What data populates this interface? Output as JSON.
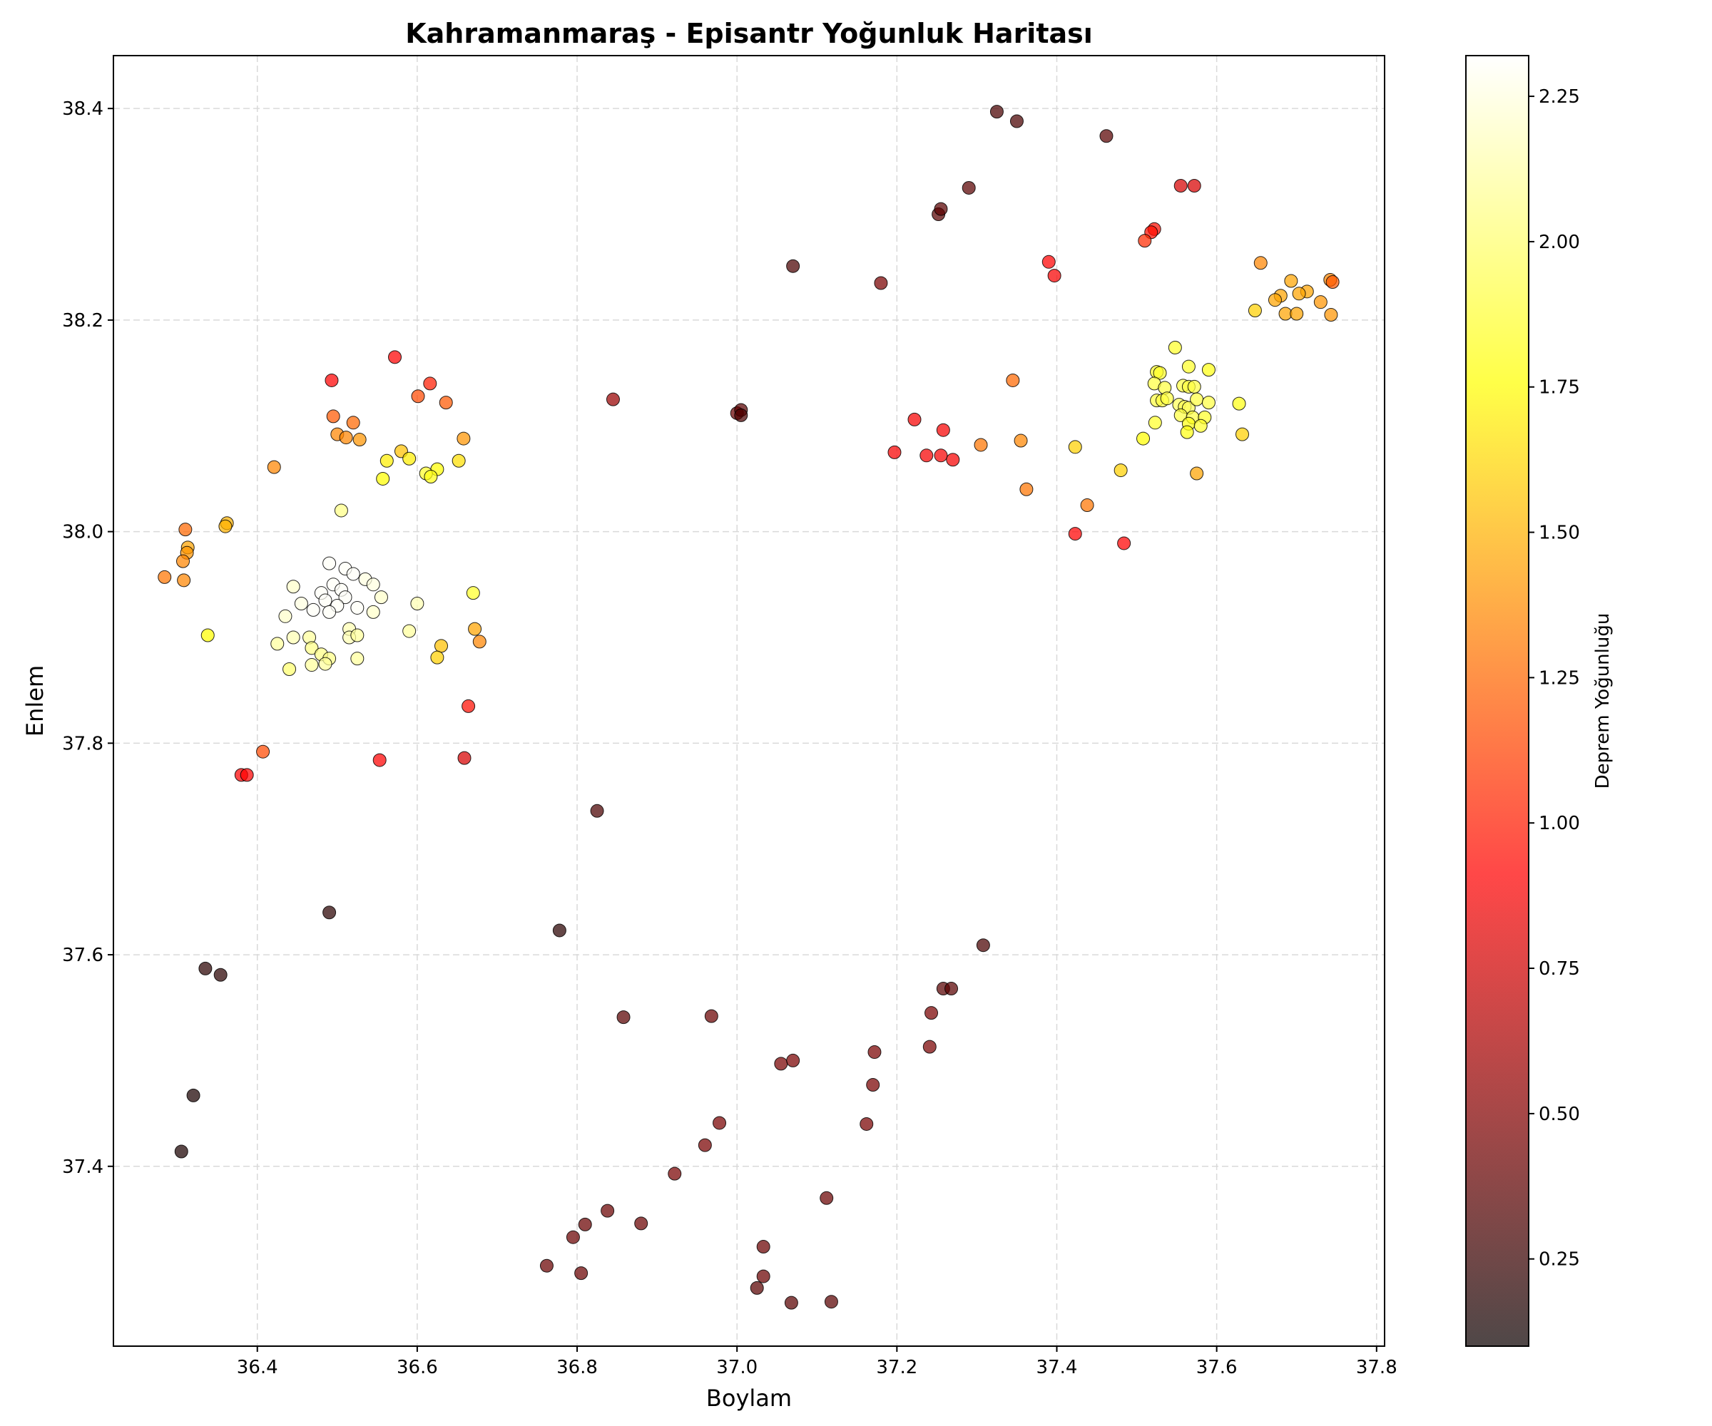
{
  "chart_data": {
    "type": "scatter",
    "title": "Kahramanmaraş - Episantr Yoğunluk Haritası",
    "xlabel": "Boylam",
    "ylabel": "Enlem",
    "xlim": [
      36.22,
      37.81
    ],
    "ylim": [
      37.23,
      38.45
    ],
    "xticks": [
      36.4,
      36.6,
      36.8,
      37.0,
      37.2,
      37.4,
      37.6,
      37.8
    ],
    "yticks": [
      37.4,
      37.6,
      37.8,
      38.0,
      38.2,
      38.4
    ],
    "x_tick_labels": [
      "36.4",
      "36.6",
      "36.8",
      "37.0",
      "37.2",
      "37.4",
      "37.6",
      "37.8"
    ],
    "y_tick_labels": [
      "37.4",
      "37.6",
      "37.8",
      "38.0",
      "38.2",
      "38.4"
    ],
    "grid": true,
    "colorbar": {
      "label": "Deprem Yoğunluğu",
      "range": [
        0.1,
        2.32
      ],
      "ticks": [
        0.25,
        0.5,
        0.75,
        1.0,
        1.25,
        1.5,
        1.75,
        2.0,
        2.25
      ],
      "tick_labels": [
        "0.25",
        "0.50",
        "0.75",
        "1.00",
        "1.25",
        "1.50",
        "1.75",
        "2.00",
        "2.25"
      ],
      "colormap": "hot"
    },
    "points": [
      [
        36.49,
        37.97,
        2.3
      ],
      [
        36.51,
        37.965,
        2.3
      ],
      [
        36.52,
        37.96,
        2.3
      ],
      [
        36.535,
        37.955,
        2.25
      ],
      [
        36.545,
        37.95,
        2.25
      ],
      [
        36.495,
        37.95,
        2.3
      ],
      [
        36.505,
        37.945,
        2.3
      ],
      [
        36.445,
        37.948,
        2.2
      ],
      [
        36.48,
        37.942,
        2.3
      ],
      [
        36.485,
        37.935,
        2.3
      ],
      [
        36.51,
        37.938,
        2.3
      ],
      [
        36.555,
        37.938,
        2.2
      ],
      [
        36.455,
        37.932,
        2.25
      ],
      [
        36.5,
        37.93,
        2.3
      ],
      [
        36.525,
        37.928,
        2.3
      ],
      [
        36.47,
        37.926,
        2.3
      ],
      [
        36.49,
        37.924,
        2.3
      ],
      [
        36.545,
        37.924,
        2.2
      ],
      [
        36.435,
        37.92,
        2.2
      ],
      [
        36.6,
        37.932,
        2.15
      ],
      [
        36.515,
        37.908,
        2.15
      ],
      [
        36.445,
        37.9,
        2.15
      ],
      [
        36.465,
        37.9,
        2.1
      ],
      [
        36.515,
        37.9,
        2.15
      ],
      [
        36.525,
        37.902,
        2.1
      ],
      [
        36.59,
        37.906,
        2.1
      ],
      [
        36.425,
        37.894,
        2.1
      ],
      [
        36.468,
        37.89,
        2.05
      ],
      [
        36.48,
        37.884,
        2.05
      ],
      [
        36.49,
        37.88,
        2.05
      ],
      [
        36.525,
        37.88,
        2.1
      ],
      [
        36.468,
        37.874,
        2.1
      ],
      [
        36.485,
        37.875,
        2.1
      ],
      [
        36.44,
        37.87,
        2.0
      ],
      [
        36.505,
        38.02,
        2.05
      ],
      [
        36.67,
        37.942,
        1.85
      ],
      [
        36.338,
        37.902,
        1.75
      ],
      [
        36.672,
        37.908,
        1.45
      ],
      [
        36.678,
        37.896,
        1.35
      ],
      [
        36.63,
        37.892,
        1.55
      ],
      [
        36.625,
        37.881,
        1.6
      ],
      [
        36.572,
        38.165,
        0.9
      ],
      [
        36.493,
        38.143,
        0.9
      ],
      [
        36.616,
        38.14,
        1.0
      ],
      [
        36.601,
        38.128,
        1.15
      ],
      [
        36.636,
        38.122,
        1.2
      ],
      [
        36.495,
        38.109,
        1.2
      ],
      [
        36.52,
        38.103,
        1.25
      ],
      [
        36.5,
        38.092,
        1.35
      ],
      [
        36.511,
        38.089,
        1.35
      ],
      [
        36.528,
        38.087,
        1.4
      ],
      [
        36.658,
        38.088,
        1.4
      ],
      [
        36.58,
        38.076,
        1.55
      ],
      [
        36.562,
        38.067,
        1.7
      ],
      [
        36.59,
        38.069,
        1.7
      ],
      [
        36.652,
        38.067,
        1.65
      ],
      [
        36.625,
        38.059,
        1.75
      ],
      [
        36.611,
        38.055,
        1.85
      ],
      [
        36.617,
        38.052,
        1.8
      ],
      [
        36.557,
        38.05,
        1.75
      ],
      [
        36.421,
        38.061,
        1.35
      ],
      [
        36.31,
        38.002,
        1.25
      ],
      [
        36.362,
        38.008,
        1.5
      ],
      [
        36.36,
        38.005,
        1.5
      ],
      [
        36.313,
        37.985,
        1.45
      ],
      [
        36.312,
        37.98,
        1.4
      ],
      [
        36.307,
        37.972,
        1.35
      ],
      [
        36.284,
        37.957,
        1.3
      ],
      [
        36.308,
        37.954,
        1.35
      ],
      [
        36.664,
        37.835,
        0.95
      ],
      [
        36.407,
        37.792,
        1.15
      ],
      [
        36.38,
        37.77,
        0.9
      ],
      [
        36.387,
        37.77,
        0.9
      ],
      [
        36.553,
        37.784,
        0.9
      ],
      [
        36.659,
        37.786,
        0.75
      ],
      [
        36.825,
        37.736,
        0.3
      ],
      [
        36.49,
        37.64,
        0.2
      ],
      [
        36.335,
        37.587,
        0.2
      ],
      [
        36.354,
        37.581,
        0.2
      ],
      [
        36.778,
        37.623,
        0.2
      ],
      [
        36.32,
        37.467,
        0.15
      ],
      [
        36.305,
        37.414,
        0.15
      ],
      [
        36.845,
        38.125,
        0.55
      ],
      [
        37.0,
        38.112,
        0.4
      ],
      [
        37.005,
        38.115,
        0.35
      ],
      [
        37.005,
        38.11,
        0.3
      ],
      [
        37.07,
        38.251,
        0.3
      ],
      [
        37.18,
        38.235,
        0.45
      ],
      [
        37.252,
        38.3,
        0.35
      ],
      [
        37.255,
        38.305,
        0.35
      ],
      [
        37.29,
        38.325,
        0.35
      ],
      [
        37.325,
        38.397,
        0.3
      ],
      [
        37.35,
        38.388,
        0.3
      ],
      [
        37.462,
        38.374,
        0.35
      ],
      [
        37.308,
        37.609,
        0.3
      ],
      [
        37.258,
        37.568,
        0.35
      ],
      [
        37.268,
        37.568,
        0.35
      ],
      [
        37.243,
        37.545,
        0.45
      ],
      [
        37.241,
        37.513,
        0.45
      ],
      [
        37.172,
        37.508,
        0.45
      ],
      [
        37.17,
        37.477,
        0.45
      ],
      [
        37.162,
        37.44,
        0.45
      ],
      [
        37.055,
        37.497,
        0.45
      ],
      [
        37.07,
        37.5,
        0.45
      ],
      [
        36.968,
        37.542,
        0.4
      ],
      [
        36.858,
        37.541,
        0.35
      ],
      [
        36.978,
        37.441,
        0.45
      ],
      [
        36.96,
        37.42,
        0.45
      ],
      [
        36.922,
        37.393,
        0.45
      ],
      [
        37.112,
        37.37,
        0.4
      ],
      [
        36.838,
        37.358,
        0.4
      ],
      [
        36.81,
        37.345,
        0.4
      ],
      [
        36.88,
        37.346,
        0.4
      ],
      [
        36.795,
        37.333,
        0.4
      ],
      [
        37.033,
        37.324,
        0.4
      ],
      [
        36.762,
        37.306,
        0.4
      ],
      [
        36.805,
        37.299,
        0.4
      ],
      [
        37.033,
        37.296,
        0.4
      ],
      [
        37.025,
        37.285,
        0.35
      ],
      [
        37.068,
        37.271,
        0.35
      ],
      [
        37.118,
        37.272,
        0.35
      ],
      [
        37.555,
        38.327,
        0.75
      ],
      [
        37.572,
        38.327,
        0.75
      ],
      [
        37.522,
        38.286,
        0.95
      ],
      [
        37.518,
        38.283,
        0.95
      ],
      [
        37.51,
        38.275,
        1.05
      ],
      [
        37.39,
        38.255,
        0.9
      ],
      [
        37.397,
        38.242,
        0.85
      ],
      [
        37.222,
        38.106,
        0.85
      ],
      [
        37.258,
        38.096,
        0.85
      ],
      [
        37.197,
        38.075,
        0.85
      ],
      [
        37.237,
        38.072,
        0.85
      ],
      [
        37.255,
        38.072,
        0.85
      ],
      [
        37.27,
        38.068,
        0.85
      ],
      [
        37.423,
        37.998,
        0.9
      ],
      [
        37.484,
        37.989,
        0.9
      ],
      [
        37.345,
        38.143,
        1.25
      ],
      [
        37.305,
        38.082,
        1.3
      ],
      [
        37.355,
        38.086,
        1.35
      ],
      [
        37.362,
        38.04,
        1.3
      ],
      [
        37.438,
        38.025,
        1.3
      ],
      [
        37.423,
        38.08,
        1.6
      ],
      [
        37.48,
        38.058,
        1.6
      ],
      [
        37.548,
        38.174,
        1.85
      ],
      [
        37.565,
        38.156,
        1.85
      ],
      [
        37.525,
        38.151,
        1.85
      ],
      [
        37.529,
        38.15,
        1.85
      ],
      [
        37.59,
        38.153,
        1.8
      ],
      [
        37.522,
        38.14,
        1.9
      ],
      [
        37.535,
        38.136,
        1.9
      ],
      [
        37.558,
        38.138,
        1.9
      ],
      [
        37.565,
        38.137,
        1.9
      ],
      [
        37.572,
        38.137,
        1.9
      ],
      [
        37.553,
        38.12,
        1.95
      ],
      [
        37.525,
        38.124,
        1.9
      ],
      [
        37.532,
        38.124,
        1.9
      ],
      [
        37.538,
        38.126,
        1.9
      ],
      [
        37.56,
        38.118,
        1.95
      ],
      [
        37.565,
        38.117,
        1.95
      ],
      [
        37.575,
        38.125,
        1.9
      ],
      [
        37.59,
        38.122,
        1.9
      ],
      [
        37.555,
        38.11,
        1.9
      ],
      [
        37.57,
        38.108,
        1.9
      ],
      [
        37.585,
        38.108,
        1.85
      ],
      [
        37.628,
        38.121,
        1.8
      ],
      [
        37.523,
        38.103,
        1.85
      ],
      [
        37.565,
        38.102,
        1.8
      ],
      [
        37.58,
        38.1,
        1.85
      ],
      [
        37.563,
        38.094,
        1.8
      ],
      [
        37.508,
        38.088,
        1.75
      ],
      [
        37.632,
        38.092,
        1.6
      ],
      [
        37.575,
        38.055,
        1.45
      ],
      [
        37.655,
        38.254,
        1.35
      ],
      [
        37.693,
        38.237,
        1.45
      ],
      [
        37.742,
        38.238,
        1.35
      ],
      [
        37.745,
        38.236,
        1.2
      ],
      [
        37.713,
        38.227,
        1.45
      ],
      [
        37.703,
        38.225,
        1.45
      ],
      [
        37.68,
        38.223,
        1.45
      ],
      [
        37.673,
        38.219,
        1.45
      ],
      [
        37.73,
        38.217,
        1.4
      ],
      [
        37.648,
        38.209,
        1.6
      ],
      [
        37.686,
        38.206,
        1.45
      ],
      [
        37.7,
        38.206,
        1.45
      ],
      [
        37.743,
        38.205,
        1.4
      ]
    ]
  }
}
